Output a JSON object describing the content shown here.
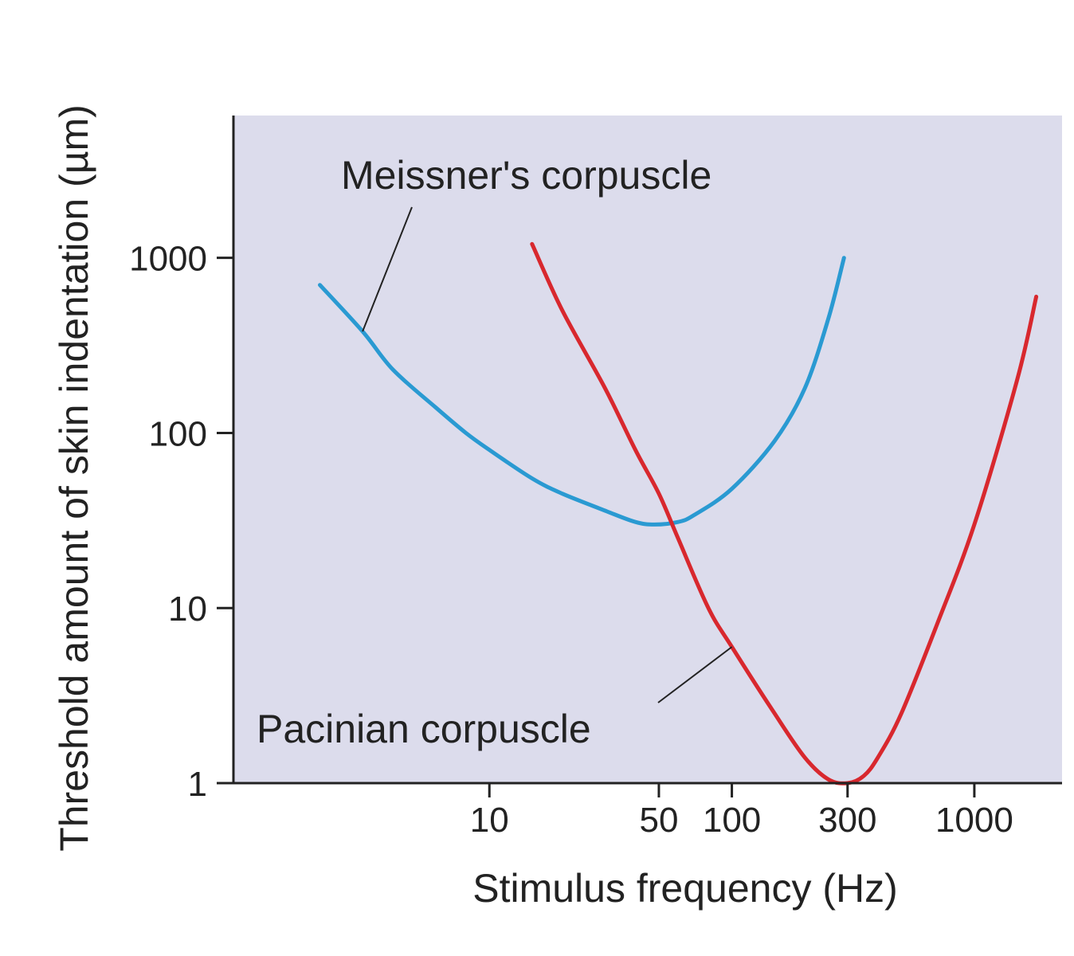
{
  "chart_data": {
    "type": "line",
    "xlabel": "Stimulus frequency (Hz)",
    "ylabel": "Threshold amount of skin indentation (µm)",
    "xscale": "log",
    "yscale": "log",
    "xlim": [
      0.88,
      2300
    ],
    "ylim": [
      1,
      6500
    ],
    "x_ticks": [
      10,
      50,
      100,
      300,
      1000
    ],
    "y_ticks": [
      1,
      10,
      100,
      1000
    ],
    "grid": false,
    "legend": "none",
    "background_color": "#dcdcec",
    "series": [
      {
        "name": "Meissner's corpuscle",
        "color": "#2a9ad2",
        "x": [
          2,
          3,
          4,
          6,
          8,
          10,
          15,
          20,
          30,
          40,
          48,
          60,
          70,
          100,
          150,
          200,
          250,
          290
        ],
        "y": [
          700,
          380,
          230,
          140,
          100,
          80,
          55,
          45,
          36,
          31,
          30,
          31,
          34,
          48,
          90,
          180,
          450,
          1000
        ]
      },
      {
        "name": "Pacinian corpuscle",
        "color": "#d8282e",
        "x": [
          15,
          20,
          30,
          40,
          50,
          60,
          80,
          100,
          150,
          200,
          250,
          300,
          350,
          400,
          500,
          700,
          1000,
          1500,
          1800
        ],
        "y": [
          1200,
          500,
          180,
          80,
          45,
          25,
          10,
          6,
          2.5,
          1.4,
          1.05,
          1,
          1.1,
          1.4,
          2.5,
          8,
          30,
          200,
          600
        ]
      }
    ],
    "annotations": [
      {
        "text": "Meissner's corpuscle",
        "series": 0,
        "point_x": 3
      },
      {
        "text": "Pacinian corpuscle",
        "series": 1,
        "point_x": 100
      }
    ]
  }
}
